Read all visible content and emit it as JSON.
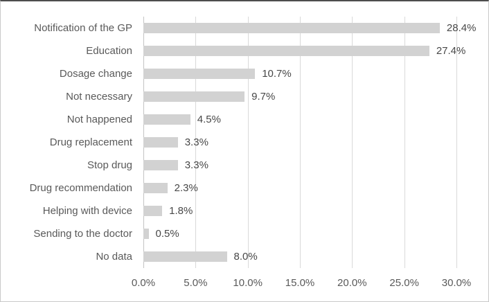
{
  "chart_data": {
    "type": "bar",
    "orientation": "horizontal",
    "title": "",
    "xlabel": "",
    "ylabel": "",
    "categories": [
      "Notification of the GP",
      "Education",
      "Dosage change",
      "Not necessary",
      "Not happened",
      "Drug replacement",
      "Stop drug",
      "Drug recommendation",
      "Helping with device",
      "Sending to the doctor",
      "No data"
    ],
    "values": [
      28.4,
      27.4,
      10.7,
      9.7,
      4.5,
      3.3,
      3.3,
      2.3,
      1.8,
      0.5,
      8.0
    ],
    "value_labels": [
      "28.4%",
      "27.4%",
      "10.7%",
      "9.7%",
      "4.5%",
      "3.3%",
      "3.3%",
      "2.3%",
      "1.8%",
      "0.5%",
      "8.0%"
    ],
    "x_tick_labels": [
      "0.0%",
      "5.0%",
      "10.0%",
      "15.0%",
      "20.0%",
      "25.0%",
      "30.0%"
    ],
    "x_tick_values": [
      0,
      5,
      10,
      15,
      20,
      25,
      30
    ],
    "xlim": [
      0,
      30
    ],
    "grid": "vertical",
    "legend": "none",
    "colors": {
      "bar": "#d2d2d2",
      "gridline": "#d9d9d9",
      "axis_line": "#c3c3c3",
      "category_text": "#595959",
      "tick_text": "#595959",
      "data_label_text": "#474747"
    }
  }
}
